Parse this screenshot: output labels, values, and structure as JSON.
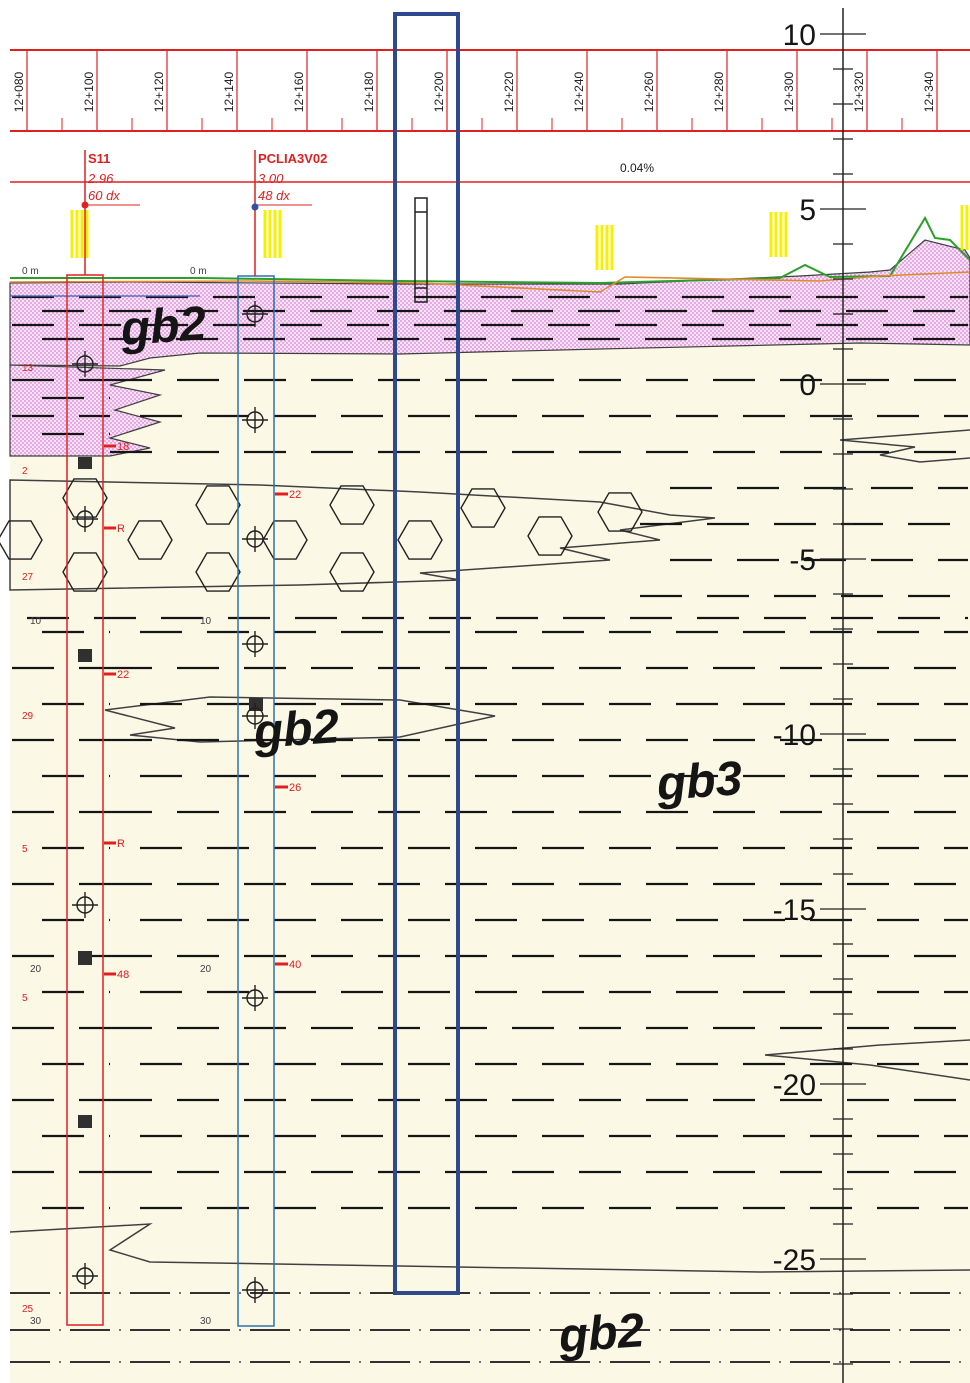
{
  "stations": [
    "12+080",
    "12+100",
    "12+120",
    "12+140",
    "12+160",
    "12+180",
    "12+200",
    "12+220",
    "12+240",
    "12+260",
    "12+280",
    "12+300",
    "12+320",
    "12+340"
  ],
  "elevation_scale": {
    "labels": [
      "10",
      "5",
      "0",
      "-5",
      "-10",
      "-15",
      "-20",
      "-25"
    ],
    "values": [
      10,
      5,
      0,
      -5,
      -10,
      -15,
      -20,
      -25
    ]
  },
  "profile": {
    "slope_label": "0.04%"
  },
  "boreholes": [
    {
      "name": "S11",
      "line1": "2.96",
      "line2": "60 dx",
      "top_label": "0 m",
      "depth_marks": [
        "10",
        "20",
        "30"
      ],
      "spt": [
        "18",
        "R",
        "22",
        "R",
        "48"
      ],
      "left_values": [
        "13",
        "2",
        "27",
        "29",
        "5",
        "5",
        "25"
      ],
      "color": "#e03030"
    },
    {
      "name": "PCLIA3V02",
      "line1": "3.00",
      "line2": "48 dx",
      "top_label": "0 m",
      "depth_marks": [
        "10",
        "20",
        "30"
      ],
      "spt": [
        "22",
        "26",
        "40"
      ],
      "color": "#3070b0"
    }
  ],
  "units": [
    {
      "code": "gb2"
    },
    {
      "code": "gb2"
    },
    {
      "code": "gb3"
    },
    {
      "code": "gb2"
    }
  ],
  "colors": {
    "background": "#fbf8e6",
    "pink_fill": "#e070e0",
    "ground_line": "#2aa02a",
    "design_line": "#e08a30",
    "red": "#e02020",
    "highlight_box": "#2e4a8c",
    "yellow": "#f4f000"
  }
}
